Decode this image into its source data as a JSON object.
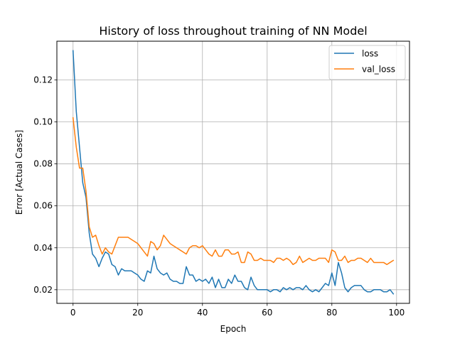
{
  "chart_data": {
    "type": "line",
    "title": "History of loss throughout training of NN Model",
    "xlabel": "Epoch",
    "ylabel": "Error [Actual Cases]",
    "xlim": [
      -5.0,
      104.0
    ],
    "ylim": [
      0.0135,
      0.1385
    ],
    "xticks": [
      0,
      20,
      40,
      60,
      80,
      100
    ],
    "yticks": [
      0.02,
      0.04,
      0.06,
      0.08,
      0.1,
      0.12
    ],
    "ytick_labels": [
      "0.02",
      "0.04",
      "0.06",
      "0.08",
      "0.10",
      "0.12"
    ],
    "grid": true,
    "legend_position": "top-right",
    "x": [
      0,
      1,
      2,
      3,
      4,
      5,
      6,
      7,
      8,
      9,
      10,
      11,
      12,
      13,
      14,
      15,
      16,
      17,
      18,
      19,
      20,
      21,
      22,
      23,
      24,
      25,
      26,
      27,
      28,
      29,
      30,
      31,
      32,
      33,
      34,
      35,
      36,
      37,
      38,
      39,
      40,
      41,
      42,
      43,
      44,
      45,
      46,
      47,
      48,
      49,
      50,
      51,
      52,
      53,
      54,
      55,
      56,
      57,
      58,
      59,
      60,
      61,
      62,
      63,
      64,
      65,
      66,
      67,
      68,
      69,
      70,
      71,
      72,
      73,
      74,
      75,
      76,
      77,
      78,
      79,
      80,
      81,
      82,
      83,
      84,
      85,
      86,
      87,
      88,
      89,
      90,
      91,
      92,
      93,
      94,
      95,
      96,
      97,
      98,
      99
    ],
    "series": [
      {
        "name": "loss",
        "color": "#1f77b4",
        "values": [
          0.134,
          0.105,
          0.088,
          0.071,
          0.064,
          0.047,
          0.037,
          0.035,
          0.031,
          0.035,
          0.038,
          0.037,
          0.032,
          0.031,
          0.027,
          0.03,
          0.029,
          0.029,
          0.029,
          0.028,
          0.027,
          0.025,
          0.024,
          0.029,
          0.028,
          0.036,
          0.03,
          0.028,
          0.027,
          0.028,
          0.025,
          0.024,
          0.024,
          0.023,
          0.023,
          0.031,
          0.027,
          0.027,
          0.024,
          0.025,
          0.024,
          0.025,
          0.023,
          0.026,
          0.021,
          0.025,
          0.021,
          0.021,
          0.025,
          0.023,
          0.027,
          0.024,
          0.024,
          0.021,
          0.02,
          0.026,
          0.022,
          0.02,
          0.02,
          0.02,
          0.02,
          0.019,
          0.02,
          0.02,
          0.019,
          0.021,
          0.02,
          0.021,
          0.02,
          0.021,
          0.021,
          0.02,
          0.022,
          0.02,
          0.019,
          0.02,
          0.019,
          0.021,
          0.023,
          0.022,
          0.028,
          0.022,
          0.033,
          0.028,
          0.021,
          0.019,
          0.021,
          0.022,
          0.022,
          0.022,
          0.02,
          0.019,
          0.019,
          0.02,
          0.02,
          0.02,
          0.019,
          0.019,
          0.02,
          0.018
        ]
      },
      {
        "name": "val_loss",
        "color": "#ff7f0e",
        "values": [
          0.102,
          0.088,
          0.078,
          0.078,
          0.067,
          0.05,
          0.045,
          0.046,
          0.041,
          0.037,
          0.04,
          0.038,
          0.037,
          0.041,
          0.045,
          0.045,
          0.045,
          0.045,
          0.044,
          0.043,
          0.042,
          0.04,
          0.038,
          0.036,
          0.043,
          0.042,
          0.039,
          0.041,
          0.046,
          0.044,
          0.042,
          0.041,
          0.04,
          0.039,
          0.038,
          0.037,
          0.04,
          0.041,
          0.041,
          0.04,
          0.041,
          0.039,
          0.037,
          0.036,
          0.039,
          0.036,
          0.036,
          0.039,
          0.039,
          0.037,
          0.037,
          0.038,
          0.033,
          0.033,
          0.038,
          0.037,
          0.034,
          0.034,
          0.035,
          0.034,
          0.034,
          0.034,
          0.033,
          0.035,
          0.035,
          0.034,
          0.035,
          0.034,
          0.032,
          0.033,
          0.036,
          0.033,
          0.034,
          0.035,
          0.034,
          0.034,
          0.035,
          0.035,
          0.035,
          0.033,
          0.039,
          0.038,
          0.034,
          0.034,
          0.036,
          0.033,
          0.034,
          0.034,
          0.035,
          0.035,
          0.034,
          0.033,
          0.035,
          0.033,
          0.033,
          0.033,
          0.033,
          0.032,
          0.033,
          0.034
        ]
      }
    ]
  }
}
